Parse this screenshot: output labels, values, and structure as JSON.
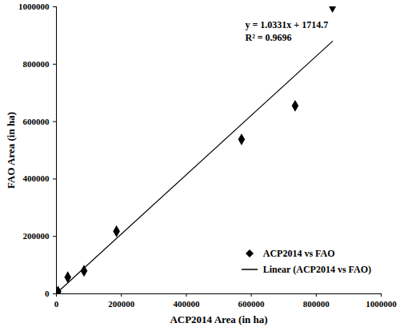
{
  "chart_data": {
    "type": "scatter",
    "x_label": "ACP2014 Area (in ha)",
    "y_label": "FAO Area (in ha)",
    "xlim": [
      0,
      1000000
    ],
    "ylim": [
      0,
      1000000
    ],
    "xticks": [
      0,
      200000,
      400000,
      600000,
      800000,
      1000000
    ],
    "yticks": [
      0,
      200000,
      400000,
      600000,
      800000,
      1000000
    ],
    "grid": false,
    "legend": "lower right",
    "annotations": [
      "y = 1.0331x + 1714.7",
      "R² = 0.9696"
    ],
    "series": [
      {
        "name": "ACP2014 vs FAO",
        "type": "scatter",
        "marker": "diamond",
        "color": "#000000",
        "x": [
          1000,
          5000,
          35000,
          85000,
          185000,
          570000,
          735000,
          850000
        ],
        "values": [
          3000,
          8000,
          58000,
          80000,
          218000,
          538000,
          655000,
          1000000
        ]
      },
      {
        "name": "Linear (ACP2014 vs FAO)",
        "type": "line",
        "line_style": "solid",
        "color": "#000000",
        "slope": 1.0331,
        "intercept": 1714.7
      }
    ]
  }
}
